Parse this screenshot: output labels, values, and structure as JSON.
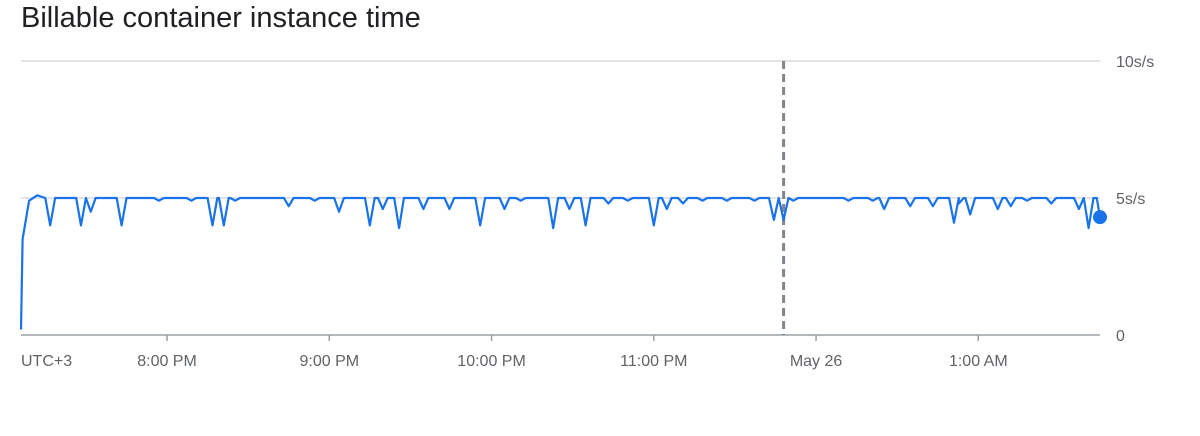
{
  "chart_data": {
    "type": "line",
    "title": "Billable container instance time",
    "timezone_label": "UTC+3",
    "x_ticks": [
      "8:00 PM",
      "9:00 PM",
      "10:00 PM",
      "11:00 PM",
      "May 26",
      "1:00 AM"
    ],
    "x_tick_hours": [
      20,
      21,
      22,
      23,
      24,
      25
    ],
    "x_range_hours": [
      19.1,
      25.75
    ],
    "event_marker_hour": 23.8,
    "y_ticks": [
      "0",
      "5s/s",
      "10s/s"
    ],
    "y_tick_values": [
      0,
      5,
      10
    ],
    "ylim": [
      0,
      10
    ],
    "y_unit": "s/s",
    "series_color": "#1a73e8",
    "baseline_value": 5.0,
    "start_points": [
      [
        19.1,
        0.2
      ],
      [
        19.11,
        3.5
      ],
      [
        19.15,
        4.9
      ],
      [
        19.2,
        5.1
      ]
    ],
    "dips": [
      [
        19.28,
        4.0
      ],
      [
        19.47,
        4.0
      ],
      [
        19.53,
        4.5
      ],
      [
        19.72,
        4.0
      ],
      [
        19.95,
        4.9
      ],
      [
        20.15,
        4.9
      ],
      [
        20.28,
        4.0
      ],
      [
        20.35,
        4.0
      ],
      [
        20.42,
        4.9
      ],
      [
        20.75,
        4.7
      ],
      [
        20.91,
        4.9
      ],
      [
        21.06,
        4.5
      ],
      [
        21.25,
        4.0
      ],
      [
        21.33,
        4.6
      ],
      [
        21.43,
        3.9
      ],
      [
        21.58,
        4.6
      ],
      [
        21.74,
        4.6
      ],
      [
        21.93,
        4.0
      ],
      [
        22.08,
        4.6
      ],
      [
        22.18,
        4.9
      ],
      [
        22.38,
        3.9
      ],
      [
        22.48,
        4.6
      ],
      [
        22.58,
        4.0
      ],
      [
        22.72,
        4.8
      ],
      [
        22.84,
        4.9
      ],
      [
        23.0,
        4.0
      ],
      [
        23.08,
        4.6
      ],
      [
        23.18,
        4.8
      ],
      [
        23.3,
        4.9
      ],
      [
        23.45,
        4.9
      ],
      [
        23.62,
        4.9
      ],
      [
        23.74,
        4.2
      ],
      [
        23.8,
        4.2
      ],
      [
        23.86,
        4.9
      ],
      [
        24.2,
        4.9
      ],
      [
        24.35,
        4.9
      ],
      [
        24.42,
        4.6
      ],
      [
        24.58,
        4.7
      ],
      [
        24.72,
        4.7
      ],
      [
        24.85,
        4.1
      ],
      [
        24.88,
        4.8
      ],
      [
        24.95,
        4.4
      ],
      [
        25.12,
        4.6
      ],
      [
        25.2,
        4.7
      ],
      [
        25.3,
        4.9
      ],
      [
        25.45,
        4.8
      ],
      [
        25.62,
        4.6
      ],
      [
        25.68,
        3.9
      ]
    ],
    "end_point": [
      25.75,
      4.3
    ],
    "grid": true,
    "legend": "none"
  }
}
